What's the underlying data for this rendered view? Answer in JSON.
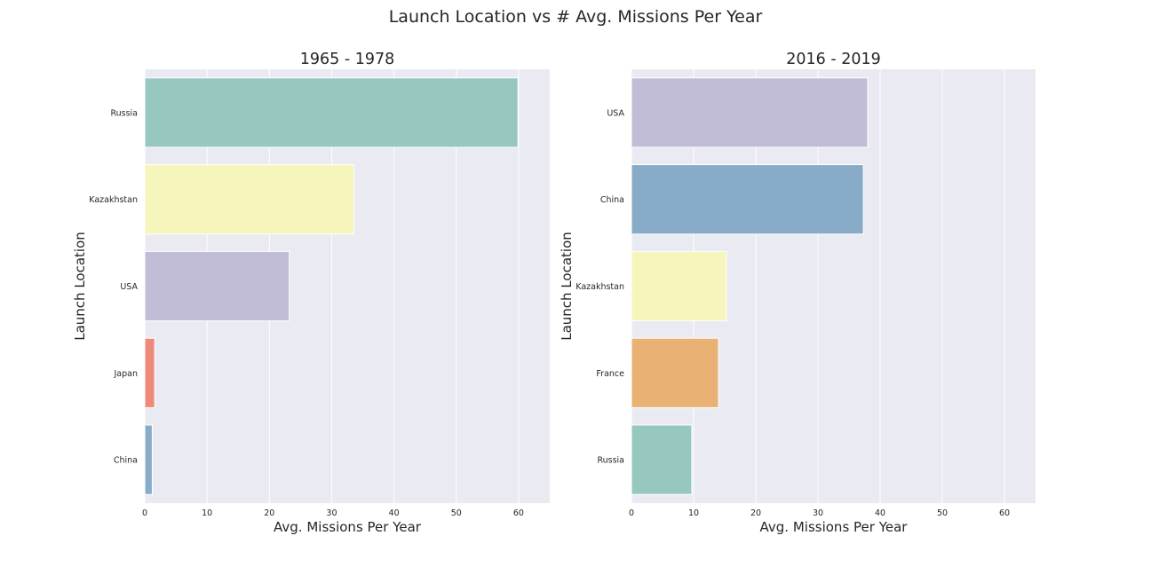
{
  "chart_title": "Launch Location vs # Avg. Missions Per Year",
  "chart_data": [
    {
      "type": "bar",
      "orientation": "horizontal",
      "title": "1965 - 1978",
      "xlabel": "Avg. Missions Per Year",
      "ylabel": "Launch Location",
      "xlim": [
        0,
        65
      ],
      "xticks": [
        0,
        10,
        20,
        30,
        40,
        50,
        60
      ],
      "grid": true,
      "categories": [
        "Russia",
        "Kazakhstan",
        "USA",
        "Japan",
        "China"
      ],
      "values": [
        59.9,
        33.6,
        23.2,
        1.6,
        1.2
      ],
      "colors": [
        "#97c8bf",
        "#f5f5bc",
        "#c1bdd6",
        "#ee8a7d",
        "#88acc8"
      ]
    },
    {
      "type": "bar",
      "orientation": "horizontal",
      "title": "2016 - 2019",
      "xlabel": "Avg. Missions Per Year",
      "ylabel": "Launch Location",
      "xlim": [
        0,
        65
      ],
      "xticks": [
        0,
        10,
        20,
        30,
        40,
        50,
        60
      ],
      "grid": true,
      "categories": [
        "USA",
        "China",
        "Kazakhstan",
        "France",
        "Russia"
      ],
      "values": [
        38.0,
        37.3,
        15.3,
        14.0,
        9.7
      ],
      "colors": [
        "#c1bdd6",
        "#88acc8",
        "#f5f5bc",
        "#e9b174",
        "#97c8bf"
      ]
    }
  ]
}
